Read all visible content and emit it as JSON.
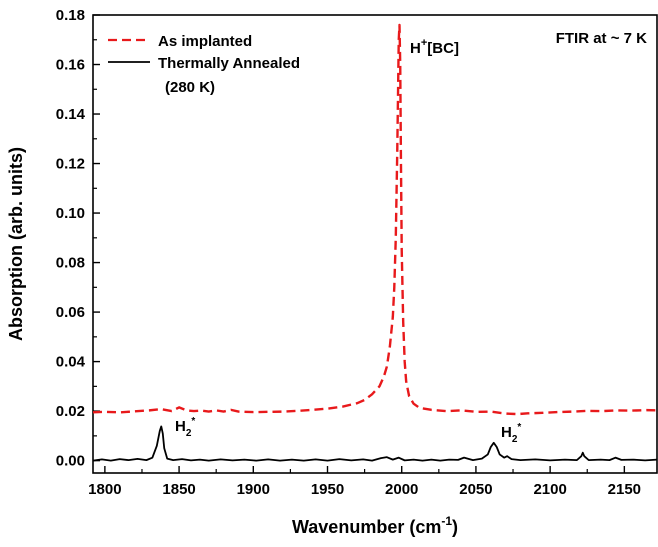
{
  "chart_data": {
    "type": "line",
    "xlabel": "Wavenumber (cm",
    "xlabel_sup": "-1",
    "xlabel_end": ")",
    "ylabel": "Absorption (arb. units)",
    "xlim": [
      1792,
      2172
    ],
    "ylim": [
      -0.005,
      0.18
    ],
    "x_ticks": [
      1800,
      1850,
      1900,
      1950,
      2000,
      2050,
      2100,
      2150
    ],
    "y_ticks": [
      0.0,
      0.02,
      0.04,
      0.06,
      0.08,
      0.1,
      0.12,
      0.14,
      0.16,
      0.18
    ],
    "x_tick_labels": [
      "1800",
      "1850",
      "1900",
      "1950",
      "2000",
      "2050",
      "2100",
      "2150"
    ],
    "y_tick_labels": [
      "0.00",
      "0.02",
      "0.04",
      "0.06",
      "0.08",
      "0.10",
      "0.12",
      "0.14",
      "0.16",
      "0.18"
    ],
    "legend_position": "top-left",
    "series": [
      {
        "name": "As implanted",
        "color": "#e8191b",
        "style": "dashed",
        "points": [
          [
            1792,
            0.0195
          ],
          [
            1800,
            0.0197
          ],
          [
            1810,
            0.0195
          ],
          [
            1820,
            0.0199
          ],
          [
            1830,
            0.0203
          ],
          [
            1838,
            0.0208
          ],
          [
            1845,
            0.02
          ],
          [
            1850,
            0.0215
          ],
          [
            1855,
            0.0203
          ],
          [
            1860,
            0.02
          ],
          [
            1865,
            0.0202
          ],
          [
            1870,
            0.0198
          ],
          [
            1875,
            0.0203
          ],
          [
            1880,
            0.0198
          ],
          [
            1885,
            0.0205
          ],
          [
            1890,
            0.0198
          ],
          [
            1900,
            0.0196
          ],
          [
            1910,
            0.0197
          ],
          [
            1920,
            0.0198
          ],
          [
            1930,
            0.0201
          ],
          [
            1940,
            0.0205
          ],
          [
            1950,
            0.021
          ],
          [
            1960,
            0.0218
          ],
          [
            1970,
            0.0232
          ],
          [
            1975,
            0.0245
          ],
          [
            1980,
            0.0268
          ],
          [
            1985,
            0.03
          ],
          [
            1988,
            0.034
          ],
          [
            1990,
            0.038
          ],
          [
            1992,
            0.046
          ],
          [
            1994,
            0.058
          ],
          [
            1995,
            0.07
          ],
          [
            1996,
            0.09
          ],
          [
            1997,
            0.125
          ],
          [
            1998,
            0.17
          ],
          [
            1998.5,
            0.176
          ],
          [
            1999,
            0.16
          ],
          [
            1999.5,
            0.12
          ],
          [
            2000,
            0.085
          ],
          [
            2001,
            0.056
          ],
          [
            2002,
            0.04
          ],
          [
            2003,
            0.032
          ],
          [
            2005,
            0.026
          ],
          [
            2008,
            0.023
          ],
          [
            2012,
            0.0213
          ],
          [
            2020,
            0.0205
          ],
          [
            2030,
            0.02
          ],
          [
            2040,
            0.0203
          ],
          [
            2050,
            0.0197
          ],
          [
            2060,
            0.0198
          ],
          [
            2070,
            0.019
          ],
          [
            2078,
            0.0188
          ],
          [
            2085,
            0.0191
          ],
          [
            2095,
            0.0193
          ],
          [
            2105,
            0.0196
          ],
          [
            2115,
            0.0198
          ],
          [
            2125,
            0.0201
          ],
          [
            2135,
            0.02
          ],
          [
            2145,
            0.0203
          ],
          [
            2155,
            0.0202
          ],
          [
            2165,
            0.0204
          ],
          [
            2172,
            0.0203
          ]
        ]
      },
      {
        "name": "Thermally Annealed",
        "name_line2": "(280 K)",
        "color": "#000000",
        "style": "solid",
        "points": [
          [
            1792,
            0.0
          ],
          [
            1798,
            0.0005
          ],
          [
            1804,
            0.0
          ],
          [
            1810,
            0.0006
          ],
          [
            1816,
            0.0002
          ],
          [
            1822,
            0.0007
          ],
          [
            1828,
            0.0002
          ],
          [
            1832,
            0.0012
          ],
          [
            1835,
            0.006
          ],
          [
            1837,
            0.012
          ],
          [
            1838,
            0.0138
          ],
          [
            1839,
            0.011
          ],
          [
            1840,
            0.005
          ],
          [
            1842,
            0.0008
          ],
          [
            1846,
            0.0002
          ],
          [
            1852,
            0.0006
          ],
          [
            1858,
            0.0001
          ],
          [
            1864,
            0.0004
          ],
          [
            1870,
            0.0
          ],
          [
            1878,
            0.0005
          ],
          [
            1886,
            0.0001
          ],
          [
            1894,
            0.0004
          ],
          [
            1902,
            0.0
          ],
          [
            1910,
            0.0005
          ],
          [
            1918,
            0.0
          ],
          [
            1926,
            0.0004
          ],
          [
            1934,
            0.0
          ],
          [
            1942,
            0.0005
          ],
          [
            1950,
            0.0
          ],
          [
            1958,
            0.0006
          ],
          [
            1966,
            0.0001
          ],
          [
            1974,
            0.0005
          ],
          [
            1980,
            0.0
          ],
          [
            1986,
            0.001
          ],
          [
            1990,
            0.0014
          ],
          [
            1994,
            0.0004
          ],
          [
            1998,
            0.0012
          ],
          [
            2002,
            0.0001
          ],
          [
            2008,
            0.0004
          ],
          [
            2014,
            0.0
          ],
          [
            2020,
            0.0004
          ],
          [
            2026,
            0.0
          ],
          [
            2032,
            0.0004
          ],
          [
            2038,
            0.0003
          ],
          [
            2042,
            0.0012
          ],
          [
            2048,
            0.0002
          ],
          [
            2054,
            0.0008
          ],
          [
            2058,
            0.0025
          ],
          [
            2060,
            0.0055
          ],
          [
            2062,
            0.0072
          ],
          [
            2064,
            0.0055
          ],
          [
            2066,
            0.0025
          ],
          [
            2069,
            0.0012
          ],
          [
            2071,
            0.0018
          ],
          [
            2074,
            0.0006
          ],
          [
            2080,
            0.0002
          ],
          [
            2090,
            0.0005
          ],
          [
            2100,
            0.0001
          ],
          [
            2110,
            0.0004
          ],
          [
            2118,
            0.0002
          ],
          [
            2121,
            0.0018
          ],
          [
            2122,
            0.0032
          ],
          [
            2123,
            0.0018
          ],
          [
            2126,
            0.0002
          ],
          [
            2134,
            0.0004
          ],
          [
            2140,
            0.0002
          ],
          [
            2144,
            0.0012
          ],
          [
            2148,
            0.0003
          ],
          [
            2156,
            0.0004
          ],
          [
            2164,
            0.0001
          ],
          [
            2172,
            0.0004
          ]
        ]
      }
    ],
    "annotations": {
      "hbc_main": "H",
      "hbc_sup": "+",
      "hbc_end": "[BC]",
      "h2_main": "H",
      "h2_sub": "2",
      "h2_sup": "*",
      "ftir": "FTIR at ~ 7 K"
    }
  }
}
